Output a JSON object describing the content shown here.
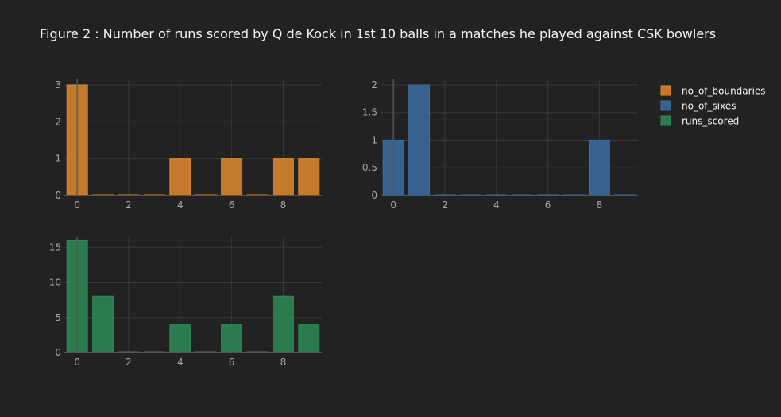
{
  "title": "Figure 2 : Number of runs scored by Q de Kock in 1st 10 balls in a matches he played against CSK bowlers",
  "chart_data": [
    {
      "type": "bar",
      "series_name": "no_of_boundaries",
      "color": "#e08a2e",
      "x": [
        0,
        1,
        2,
        3,
        4,
        5,
        6,
        7,
        8,
        9
      ],
      "values": [
        3,
        0,
        0,
        0,
        1,
        0,
        1,
        0,
        1,
        1
      ],
      "xticks": [
        0,
        2,
        4,
        6,
        8
      ],
      "yticks": [
        0,
        1,
        2,
        3
      ],
      "xlim": [
        -0.5,
        9.5
      ],
      "ylim": [
        0,
        3.15
      ]
    },
    {
      "type": "bar",
      "series_name": "no_of_sixes",
      "color": "#3b6da3",
      "x": [
        0,
        1,
        2,
        3,
        4,
        5,
        6,
        7,
        8,
        9
      ],
      "values": [
        1,
        2,
        0,
        0,
        0,
        0,
        0,
        0,
        1,
        0
      ],
      "xticks": [
        0,
        2,
        4,
        6,
        8
      ],
      "yticks": [
        0,
        0.5,
        1,
        1.5,
        2
      ],
      "ytick_labels": [
        "0",
        "0.5",
        "1",
        "1.5",
        "2"
      ],
      "xlim": [
        -0.5,
        9.5
      ],
      "ylim": [
        0,
        2.1
      ]
    },
    {
      "type": "bar",
      "series_name": "runs_scored",
      "color": "#2e8b57",
      "x": [
        0,
        1,
        2,
        3,
        4,
        5,
        6,
        7,
        8,
        9
      ],
      "values": [
        16,
        8,
        0,
        0,
        4,
        0,
        4,
        0,
        8,
        4
      ],
      "xticks": [
        0,
        2,
        4,
        6,
        8
      ],
      "yticks": [
        0,
        5,
        10,
        15
      ],
      "xlim": [
        -0.5,
        9.5
      ],
      "ylim": [
        0,
        16.5
      ]
    }
  ],
  "legend": [
    {
      "label": "no_of_boundaries",
      "color": "#e08a2e"
    },
    {
      "label": "no_of_sixes",
      "color": "#3b6da3"
    },
    {
      "label": "runs_scored",
      "color": "#2e8b57"
    }
  ],
  "legend_position": "top-right",
  "grid": true
}
